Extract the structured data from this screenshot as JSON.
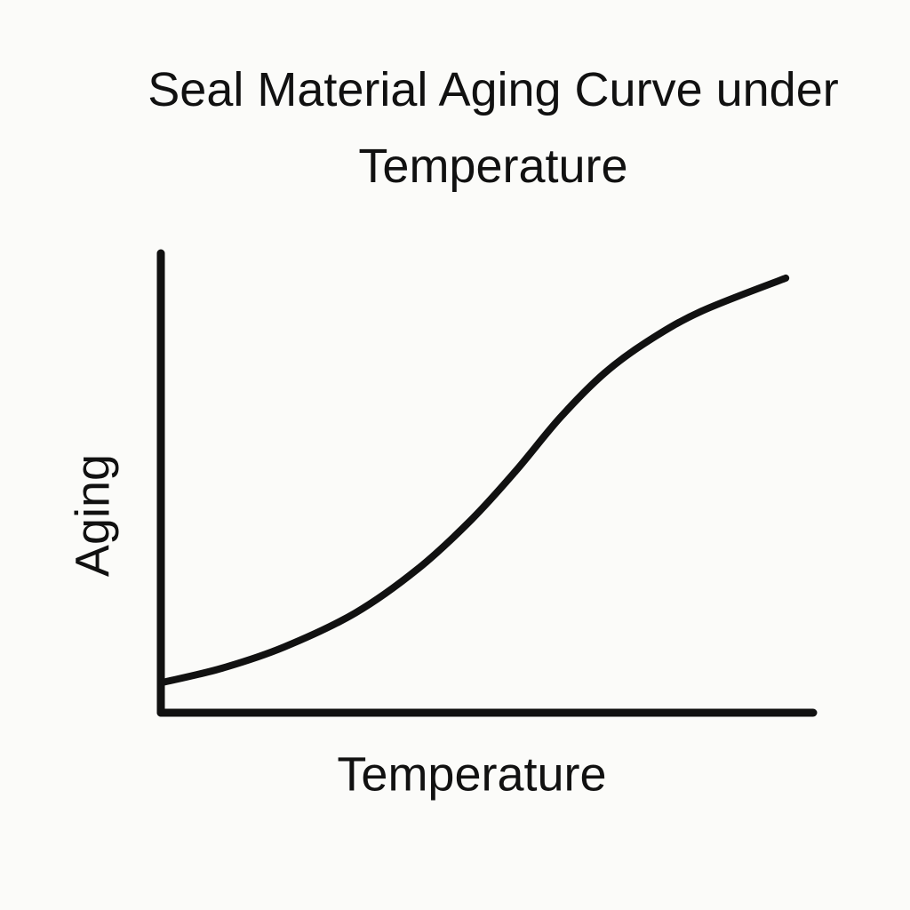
{
  "chart_data": {
    "type": "line",
    "title": "Seal Material Aging Curve under Temperature",
    "x_label": "Temperature",
    "y_label": "Aging",
    "x": [
      0.3,
      9.4,
      18.9,
      29.8,
      39.4,
      47.6,
      54.4,
      61.2,
      68.0,
      74.8,
      82.9,
      95.8
    ],
    "series": [
      {
        "color": "#111111",
        "values": [
          6.6,
          9.7,
          14.3,
          21.7,
          31.3,
          42.0,
          52.6,
          64.2,
          73.9,
          81.0,
          87.4,
          94.6
        ]
      }
    ],
    "xlim": [
      0,
      100
    ],
    "ylim": [
      0,
      100
    ]
  }
}
